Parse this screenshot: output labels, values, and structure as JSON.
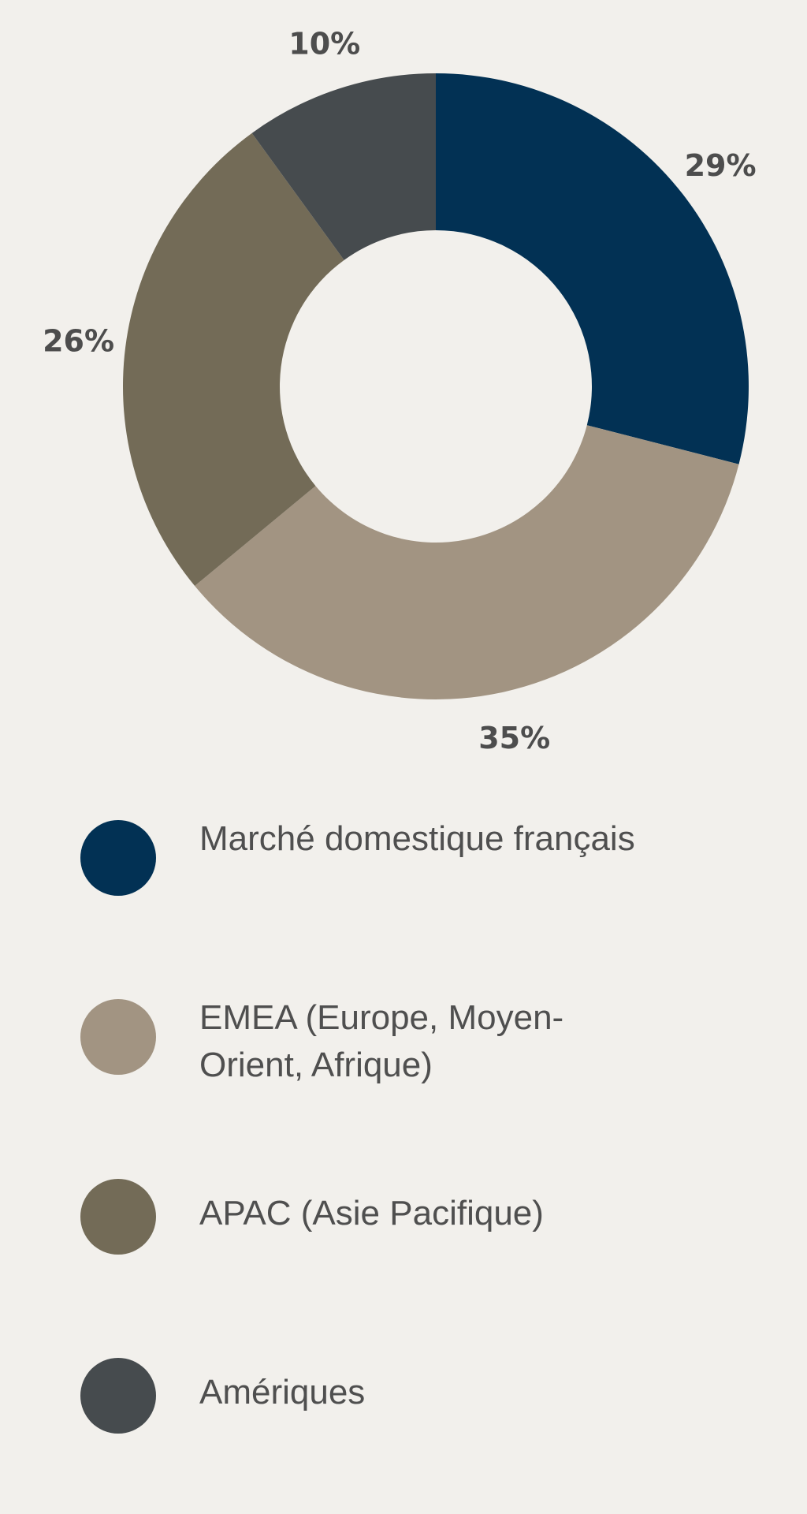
{
  "chart_data": {
    "type": "pie",
    "variant": "donut",
    "title": "",
    "slices": [
      {
        "label": "Marché domestique français",
        "value": 29,
        "value_label": "29%",
        "color": "#023154"
      },
      {
        "label": "EMEA (Europe, Moyen-Orient, Afrique)",
        "value": 35,
        "value_label": "35%",
        "color": "#a29482"
      },
      {
        "label": "APAC (Asie Pacifique)",
        "value": 26,
        "value_label": "26%",
        "color": "#736b57"
      },
      {
        "label": "Amériques",
        "value": 10,
        "value_label": "10%",
        "color": "#464b4e"
      }
    ],
    "legend_position": "bottom",
    "start_angle": "12 o'clock",
    "direction": "clockwise"
  },
  "colors": {
    "background": "#f2f0ec",
    "label_text": "#4d4d4d"
  }
}
